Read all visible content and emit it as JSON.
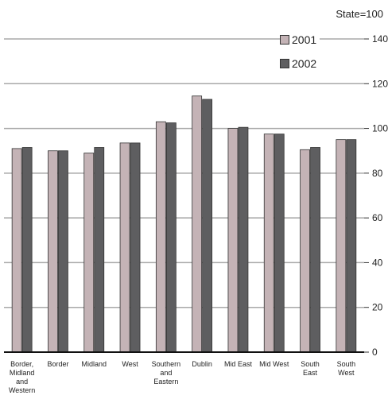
{
  "chart_data": {
    "type": "bar",
    "unit_label": "State=100",
    "categories": [
      [
        "Border,",
        "Midland",
        "and",
        "Western"
      ],
      [
        "Border"
      ],
      [
        "Midland"
      ],
      [
        "West"
      ],
      [
        "Southern",
        "and",
        "Eastern"
      ],
      [
        "Dublin"
      ],
      [
        "Mid East"
      ],
      [
        "Mid West"
      ],
      [
        "South",
        "East"
      ],
      [
        "South",
        "West"
      ]
    ],
    "series": [
      {
        "name": "2001",
        "color": "#c4b3b6",
        "values": [
          91,
          90,
          89,
          93.5,
          103,
          114.5,
          100,
          97.5,
          90.5,
          95
        ]
      },
      {
        "name": "2002",
        "color": "#5e5e60",
        "values": [
          91.5,
          90,
          91.5,
          93.5,
          102.5,
          113,
          100.5,
          97.5,
          91.5,
          95
        ]
      }
    ],
    "ylim": [
      0,
      140
    ],
    "yticks": [
      0,
      20,
      40,
      60,
      80,
      100,
      120,
      140
    ],
    "ytick_labels": [
      "0",
      "20",
      "40",
      "60",
      "80",
      "100",
      "120",
      "140"
    ],
    "y_axis_side": "right",
    "grid": true,
    "legend_position": "top-right"
  }
}
